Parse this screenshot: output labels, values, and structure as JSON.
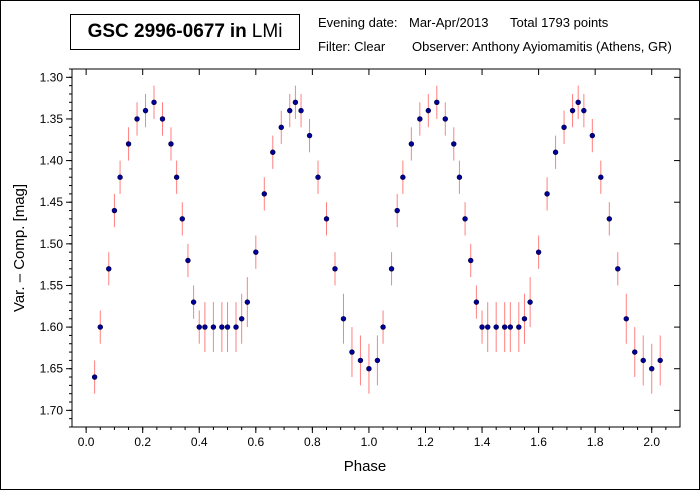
{
  "header": {
    "star": "GSC 2996-0677",
    "connector": "in",
    "constellation": "LMi",
    "evening_label": "Evening date:",
    "evening_value": "Mar-Apr/2013",
    "total_label": "Total 1793 points",
    "filter_label": "Filter: Clear",
    "observer_label": "Observer: Anthony Ayiomamitis (Athens, GR)"
  },
  "chart_data": {
    "type": "scatter",
    "xlabel": "Phase",
    "ylabel": "Var. – Comp. [mag]",
    "xlim": [
      -0.05,
      2.1
    ],
    "ylim": [
      1.29,
      1.72
    ],
    "y_inverted": true,
    "grid": false,
    "x_ticks": [
      "0.0",
      "0.2",
      "0.4",
      "0.6",
      "0.8",
      "1.0",
      "1.2",
      "1.4",
      "1.6",
      "1.8",
      "2.0"
    ],
    "y_ticks": [
      "1.30",
      "1.35",
      "1.40",
      "1.45",
      "1.50",
      "1.55",
      "1.60",
      "1.65",
      "1.70"
    ],
    "total_points": 1793,
    "colors": {
      "points": "#000099",
      "error_bars": "#ff8080"
    },
    "series": [
      {
        "x": [
          0.03,
          0.05,
          0.08,
          0.1,
          0.12,
          0.15,
          0.18,
          0.21,
          0.24,
          0.27,
          0.3,
          0.32,
          0.34,
          0.36,
          0.38,
          0.4,
          0.42,
          0.45,
          0.48,
          0.5,
          0.53,
          0.55,
          0.57,
          0.6,
          0.63,
          0.66,
          0.69,
          0.72,
          0.74,
          0.76,
          0.79,
          0.82,
          0.85,
          0.88,
          0.91,
          0.94,
          0.97,
          1.0,
          1.03,
          1.05,
          1.08,
          1.1,
          1.12,
          1.15,
          1.18,
          1.21,
          1.24,
          1.27,
          1.3,
          1.32,
          1.34,
          1.36,
          1.38,
          1.4,
          1.42,
          1.45,
          1.48,
          1.5,
          1.53,
          1.55,
          1.57,
          1.6,
          1.63,
          1.66,
          1.69,
          1.72,
          1.74,
          1.76,
          1.79,
          1.82,
          1.85,
          1.88,
          1.91,
          1.94,
          1.97,
          2.0,
          2.03
        ],
        "y": [
          1.66,
          1.6,
          1.53,
          1.46,
          1.42,
          1.38,
          1.35,
          1.34,
          1.33,
          1.35,
          1.38,
          1.42,
          1.47,
          1.52,
          1.57,
          1.6,
          1.6,
          1.6,
          1.6,
          1.6,
          1.6,
          1.59,
          1.57,
          1.51,
          1.44,
          1.39,
          1.36,
          1.34,
          1.33,
          1.34,
          1.37,
          1.42,
          1.47,
          1.53,
          1.59,
          1.63,
          1.64,
          1.65,
          1.64,
          1.6,
          1.53,
          1.46,
          1.42,
          1.38,
          1.35,
          1.34,
          1.33,
          1.35,
          1.38,
          1.42,
          1.47,
          1.52,
          1.57,
          1.6,
          1.6,
          1.6,
          1.6,
          1.6,
          1.6,
          1.59,
          1.57,
          1.51,
          1.44,
          1.39,
          1.36,
          1.34,
          1.33,
          1.34,
          1.37,
          1.42,
          1.47,
          1.53,
          1.59,
          1.63,
          1.64,
          1.65,
          1.64
        ],
        "error": [
          0.02,
          0.02,
          0.02,
          0.02,
          0.02,
          0.02,
          0.02,
          0.02,
          0.02,
          0.02,
          0.02,
          0.02,
          0.02,
          0.02,
          0.02,
          0.02,
          0.03,
          0.03,
          0.03,
          0.03,
          0.03,
          0.03,
          0.03,
          0.02,
          0.02,
          0.02,
          0.02,
          0.02,
          0.02,
          0.02,
          0.02,
          0.02,
          0.02,
          0.02,
          0.03,
          0.03,
          0.03,
          0.03,
          0.03,
          0.02,
          0.02,
          0.02,
          0.02,
          0.02,
          0.02,
          0.02,
          0.02,
          0.02,
          0.02,
          0.02,
          0.02,
          0.02,
          0.02,
          0.02,
          0.03,
          0.03,
          0.03,
          0.03,
          0.03,
          0.03,
          0.03,
          0.02,
          0.02,
          0.02,
          0.02,
          0.02,
          0.02,
          0.02,
          0.02,
          0.02,
          0.02,
          0.02,
          0.03,
          0.03,
          0.03,
          0.03,
          0.03
        ]
      }
    ]
  }
}
